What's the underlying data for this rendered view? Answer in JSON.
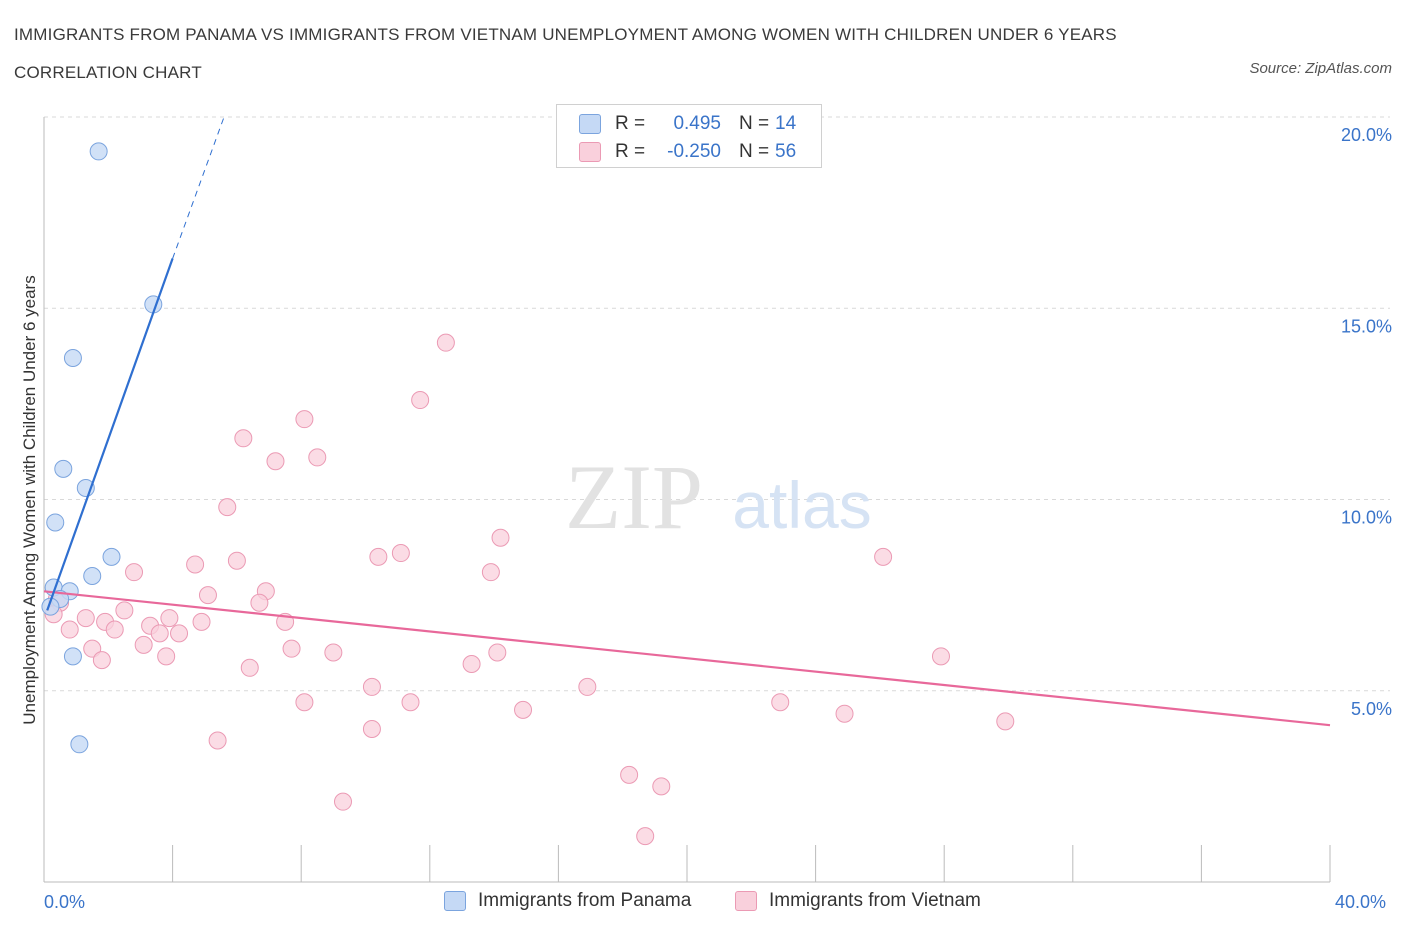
{
  "title": "IMMIGRANTS FROM PANAMA VS IMMIGRANTS FROM VIETNAM UNEMPLOYMENT AMONG WOMEN WITH CHILDREN UNDER 6 YEARS CORRELATION CHART",
  "source": "Source: ZipAtlas.com",
  "watermark": {
    "zip": "ZIP",
    "atlas": "atlas"
  },
  "legend": {
    "rows": [
      {
        "r_label": "R =",
        "r_value": "0.495",
        "n_label": "N =",
        "n_value": "14"
      },
      {
        "r_label": "R =",
        "r_value": "-0.250",
        "n_label": "N =",
        "n_value": "56"
      }
    ]
  },
  "x_axis": {
    "min_label": "0.0%",
    "max_label": "40.0%"
  },
  "colors": {
    "panama_fill": "#c5d9f5",
    "panama_stroke": "#7ba4de",
    "panama_line": "#2f6fd0",
    "vietnam_fill": "#f9d0dc",
    "vietnam_stroke": "#eb9ab4",
    "vietnam_line": "#e8689a",
    "tick_label": "#3a74c9",
    "grid": "#d9d9d9"
  },
  "chart_data": {
    "type": "scatter",
    "title": "IMMIGRANTS FROM PANAMA VS IMMIGRANTS FROM VIETNAM UNEMPLOYMENT AMONG WOMEN WITH CHILDREN UNDER 6 YEARS CORRELATION CHART",
    "xlabel": "",
    "ylabel": "Unemployment Among Women with Children Under 6 years",
    "xlim": [
      0,
      40
    ],
    "ylim": [
      0,
      20
    ],
    "y_ticks": [
      5,
      10,
      15,
      20
    ],
    "y_tick_labels": [
      "5.0%",
      "10.0%",
      "15.0%",
      "20.0%"
    ],
    "grid": true,
    "legend_position": "bottom",
    "series": [
      {
        "name": "Immigrants from Panama",
        "R": 0.495,
        "N": 14,
        "points": [
          [
            1.7,
            19.1
          ],
          [
            3.4,
            15.1
          ],
          [
            0.9,
            13.7
          ],
          [
            0.6,
            10.8
          ],
          [
            1.3,
            10.3
          ],
          [
            0.35,
            9.4
          ],
          [
            2.1,
            8.5
          ],
          [
            1.5,
            8.0
          ],
          [
            0.3,
            7.7
          ],
          [
            0.8,
            7.6
          ],
          [
            0.5,
            7.4
          ],
          [
            0.2,
            7.2
          ],
          [
            0.9,
            5.9
          ],
          [
            1.1,
            3.6
          ]
        ],
        "trend": {
          "x0": 0.1,
          "y0": 7.1,
          "x1": 4.0,
          "y1": 16.3,
          "dashed_to_x": 5.6,
          "dashed_to_y": 20.0
        }
      },
      {
        "name": "Immigrants from Vietnam",
        "R": -0.25,
        "N": 56,
        "points": [
          [
            12.5,
            14.1
          ],
          [
            11.7,
            12.6
          ],
          [
            8.1,
            12.1
          ],
          [
            6.2,
            11.6
          ],
          [
            7.2,
            11.0
          ],
          [
            8.5,
            11.1
          ],
          [
            5.7,
            9.8
          ],
          [
            14.2,
            9.0
          ],
          [
            26.1,
            8.5
          ],
          [
            10.4,
            8.5
          ],
          [
            11.1,
            8.6
          ],
          [
            6.0,
            8.4
          ],
          [
            4.7,
            8.3
          ],
          [
            2.8,
            8.1
          ],
          [
            13.9,
            8.1
          ],
          [
            6.9,
            7.6
          ],
          [
            5.1,
            7.5
          ],
          [
            6.7,
            7.3
          ],
          [
            2.5,
            7.1
          ],
          [
            1.3,
            6.9
          ],
          [
            3.9,
            6.9
          ],
          [
            7.5,
            6.8
          ],
          [
            1.9,
            6.8
          ],
          [
            4.9,
            6.8
          ],
          [
            3.3,
            6.7
          ],
          [
            0.8,
            6.6
          ],
          [
            4.2,
            6.5
          ],
          [
            3.6,
            6.5
          ],
          [
            2.2,
            6.6
          ],
          [
            3.1,
            6.2
          ],
          [
            1.5,
            6.1
          ],
          [
            7.7,
            6.1
          ],
          [
            14.1,
            6.0
          ],
          [
            9.0,
            6.0
          ],
          [
            3.8,
            5.9
          ],
          [
            27.9,
            5.9
          ],
          [
            1.8,
            5.8
          ],
          [
            13.3,
            5.7
          ],
          [
            6.4,
            5.6
          ],
          [
            10.2,
            5.1
          ],
          [
            16.9,
            5.1
          ],
          [
            8.1,
            4.7
          ],
          [
            11.4,
            4.7
          ],
          [
            22.9,
            4.7
          ],
          [
            14.9,
            4.5
          ],
          [
            24.9,
            4.4
          ],
          [
            29.9,
            4.2
          ],
          [
            10.2,
            4.0
          ],
          [
            5.4,
            3.7
          ],
          [
            18.2,
            2.8
          ],
          [
            19.2,
            2.5
          ],
          [
            9.3,
            2.1
          ],
          [
            18.7,
            1.2
          ],
          [
            0.4,
            7.4
          ],
          [
            0.5,
            7.3
          ],
          [
            0.3,
            7.0
          ]
        ],
        "trend": {
          "x0": 0.0,
          "y0": 7.6,
          "x1": 40.0,
          "y1": 4.1
        }
      }
    ]
  }
}
